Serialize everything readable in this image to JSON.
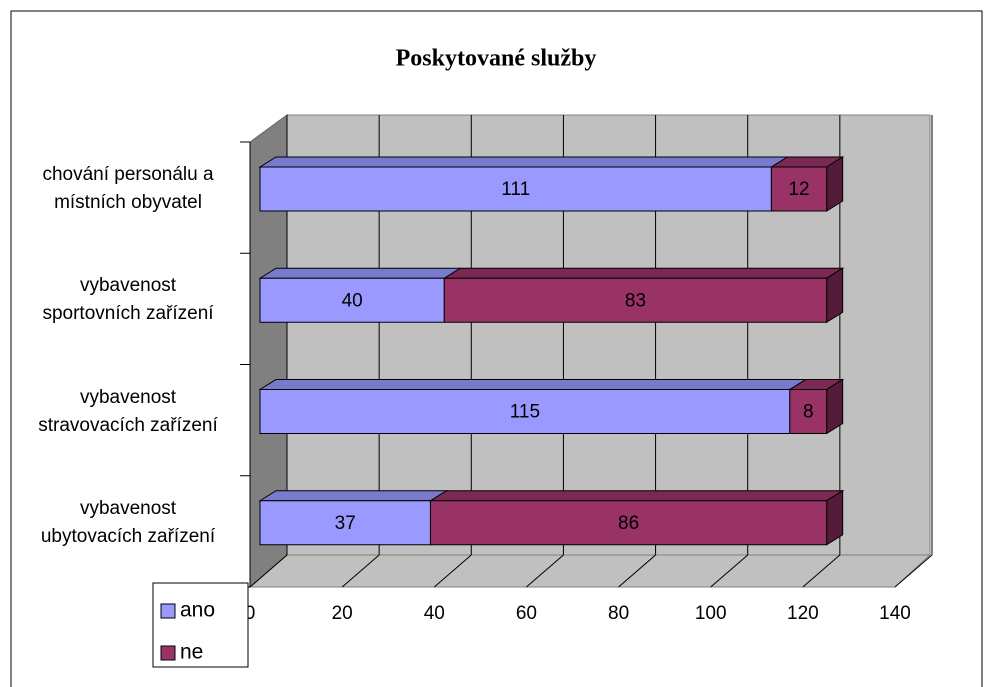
{
  "chart_data": {
    "type": "bar3d_stacked_horizontal",
    "title": "Poskytované služby",
    "categories": [
      [
        "chování personálu a",
        "místních obyvatel"
      ],
      [
        "vybavenost",
        "sportovních zařízení"
      ],
      [
        "vybavenost",
        "stravovacích zařízení"
      ],
      [
        "vybavenost",
        "ubytovacích zařízení"
      ]
    ],
    "series": [
      {
        "name": "ano",
        "color": "#9999ff",
        "values": [
          111,
          40,
          115,
          37
        ]
      },
      {
        "name": "ne",
        "color": "#993366",
        "values": [
          12,
          83,
          8,
          86
        ]
      }
    ],
    "xlim": [
      0,
      140
    ],
    "xticks": [
      0,
      20,
      40,
      60,
      80,
      100,
      120,
      140
    ],
    "grid": true,
    "legend": "bottom-left"
  }
}
